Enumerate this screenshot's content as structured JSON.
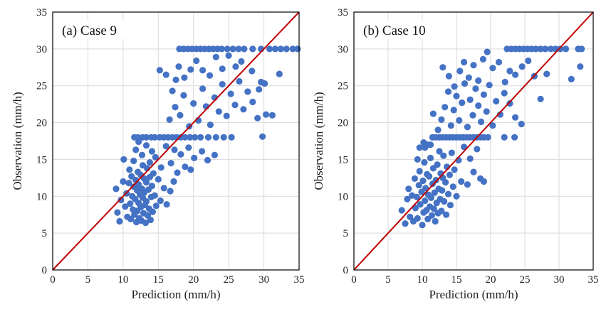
{
  "colors": {
    "points": "#4472C4",
    "identity_line": "#C00000",
    "grid": "#D9D9D9"
  },
  "chart_data": [
    {
      "type": "scatter",
      "panel_label": "(a) Case 9",
      "xlabel": "Prediction (mm/h)",
      "ylabel": "Observation (mm/h)",
      "xlim": [
        0,
        35
      ],
      "ylim": [
        0,
        35
      ],
      "xticks": [
        "0",
        "5",
        "10",
        "15",
        "20",
        "25",
        "30",
        "35"
      ],
      "yticks": [
        "0",
        "5",
        "10",
        "15",
        "20",
        "25",
        "30",
        "35"
      ],
      "grid": true,
      "identity_line": true,
      "points": [
        [
          9.0,
          11.0
        ],
        [
          9.2,
          7.8
        ],
        [
          9.5,
          6.6
        ],
        [
          9.7,
          9.5
        ],
        [
          10.0,
          12.0
        ],
        [
          10.1,
          15.0
        ],
        [
          10.3,
          8.6
        ],
        [
          10.5,
          10.4
        ],
        [
          10.6,
          7.2
        ],
        [
          10.8,
          11.8
        ],
        [
          10.9,
          13.6
        ],
        [
          11.0,
          9.0
        ],
        [
          11.1,
          6.9
        ],
        [
          11.2,
          12.7
        ],
        [
          11.3,
          10.0
        ],
        [
          11.4,
          8.2
        ],
        [
          11.5,
          14.8
        ],
        [
          11.5,
          11.3
        ],
        [
          11.6,
          7.5
        ],
        [
          11.7,
          9.6
        ],
        [
          11.8,
          12.2
        ],
        [
          11.9,
          6.5
        ],
        [
          12.0,
          10.8
        ],
        [
          12.0,
          8.0
        ],
        [
          12.1,
          13.3
        ],
        [
          12.2,
          11.6
        ],
        [
          12.2,
          9.1
        ],
        [
          12.3,
          7.0
        ],
        [
          12.4,
          10.2
        ],
        [
          12.5,
          12.9
        ],
        [
          12.5,
          8.5
        ],
        [
          12.6,
          6.7
        ],
        [
          12.7,
          11.0
        ],
        [
          12.8,
          9.8
        ],
        [
          12.8,
          14.2
        ],
        [
          12.9,
          7.7
        ],
        [
          13.0,
          12.4
        ],
        [
          13.0,
          10.5
        ],
        [
          13.1,
          8.8
        ],
        [
          13.2,
          6.4
        ],
        [
          13.3,
          11.9
        ],
        [
          13.3,
          9.3
        ],
        [
          13.4,
          13.8
        ],
        [
          13.5,
          7.4
        ],
        [
          13.6,
          10.9
        ],
        [
          13.7,
          8.3
        ],
        [
          13.8,
          12.6
        ],
        [
          13.9,
          6.8
        ],
        [
          14.0,
          9.9
        ],
        [
          14.1,
          11.4
        ],
        [
          14.2,
          7.9
        ],
        [
          14.3,
          13.1
        ],
        [
          14.5,
          10.1
        ],
        [
          14.7,
          8.7
        ],
        [
          15.0,
          12.3
        ],
        [
          15.3,
          9.4
        ],
        [
          15.8,
          11.1
        ],
        [
          16.2,
          8.9
        ],
        [
          16.7,
          10.7
        ],
        [
          17.2,
          12.0
        ],
        [
          11.8,
          16.3
        ],
        [
          12.2,
          17.4
        ],
        [
          12.7,
          15.6
        ],
        [
          13.3,
          16.9
        ],
        [
          13.8,
          14.6
        ],
        [
          14.1,
          16.1
        ],
        [
          14.6,
          15.3
        ],
        [
          15.4,
          13.9
        ],
        [
          16.1,
          16.8
        ],
        [
          16.8,
          14.5
        ],
        [
          17.3,
          16.3
        ],
        [
          17.7,
          13.2
        ],
        [
          18.2,
          15.7
        ],
        [
          18.8,
          14.0
        ],
        [
          19.3,
          16.6
        ],
        [
          19.6,
          13.6
        ],
        [
          20.1,
          15.2
        ],
        [
          21.2,
          16.1
        ],
        [
          22.0,
          14.9
        ],
        [
          23.0,
          15.6
        ],
        [
          11.6,
          18.0
        ],
        [
          12.1,
          18.0
        ],
        [
          12.8,
          18.0
        ],
        [
          13.3,
          18.0
        ],
        [
          14.0,
          18.0
        ],
        [
          14.5,
          18.0
        ],
        [
          15.2,
          18.0
        ],
        [
          15.8,
          18.0
        ],
        [
          16.4,
          18.0
        ],
        [
          17.0,
          18.0
        ],
        [
          17.6,
          18.0
        ],
        [
          18.2,
          18.0
        ],
        [
          18.8,
          18.0
        ],
        [
          19.5,
          18.0
        ],
        [
          20.2,
          18.0
        ],
        [
          21.0,
          18.0
        ],
        [
          22.1,
          18.0
        ],
        [
          23.2,
          18.0
        ],
        [
          24.3,
          18.0
        ],
        [
          25.4,
          18.0
        ],
        [
          16.6,
          20.4
        ],
        [
          17.4,
          22.1
        ],
        [
          18.1,
          21.0
        ],
        [
          18.6,
          23.7
        ],
        [
          19.4,
          19.5
        ],
        [
          20.0,
          22.6
        ],
        [
          20.7,
          20.3
        ],
        [
          21.3,
          24.6
        ],
        [
          21.8,
          22.2
        ],
        [
          22.4,
          19.7
        ],
        [
          23.0,
          23.4
        ],
        [
          23.6,
          21.5
        ],
        [
          24.1,
          25.2
        ],
        [
          24.7,
          20.9
        ],
        [
          25.3,
          23.9
        ],
        [
          25.9,
          22.4
        ],
        [
          26.5,
          25.6
        ],
        [
          27.1,
          21.8
        ],
        [
          27.7,
          24.2
        ],
        [
          28.4,
          22.8
        ],
        [
          29.1,
          20.6
        ],
        [
          29.6,
          25.5
        ],
        [
          30.3,
          21.1
        ],
        [
          31.2,
          21.0
        ],
        [
          32.2,
          26.6
        ],
        [
          29.8,
          18.1
        ],
        [
          15.2,
          27.1
        ],
        [
          16.1,
          26.5
        ],
        [
          17.0,
          24.3
        ],
        [
          17.5,
          25.8
        ],
        [
          17.9,
          27.6
        ],
        [
          18.7,
          26.1
        ],
        [
          19.6,
          27.2
        ],
        [
          20.4,
          28.4
        ],
        [
          21.3,
          27.1
        ],
        [
          22.3,
          26.4
        ],
        [
          23.2,
          28.9
        ],
        [
          24.1,
          27.3
        ],
        [
          25.0,
          29.1
        ],
        [
          26.0,
          27.6
        ],
        [
          26.8,
          28.3
        ],
        [
          28.3,
          27.0
        ],
        [
          29.3,
          24.5
        ],
        [
          30.1,
          25.3
        ],
        [
          18.0,
          30.0
        ],
        [
          18.6,
          30.0
        ],
        [
          19.2,
          30.0
        ],
        [
          19.8,
          30.0
        ],
        [
          20.4,
          30.0
        ],
        [
          21.0,
          30.0
        ],
        [
          21.6,
          30.0
        ],
        [
          22.2,
          30.0
        ],
        [
          22.8,
          30.0
        ],
        [
          23.4,
          30.0
        ],
        [
          24.0,
          30.0
        ],
        [
          24.8,
          30.0
        ],
        [
          25.6,
          30.0
        ],
        [
          26.4,
          30.0
        ],
        [
          27.2,
          30.0
        ],
        [
          28.4,
          30.0
        ],
        [
          29.6,
          30.0
        ],
        [
          30.8,
          30.0
        ],
        [
          31.6,
          30.0
        ],
        [
          32.4,
          30.0
        ],
        [
          33.2,
          30.0
        ],
        [
          34.1,
          30.0
        ],
        [
          34.8,
          30.0
        ]
      ]
    },
    {
      "type": "scatter",
      "panel_label": "(b) Case 10",
      "xlabel": "Prediction (mm/h)",
      "ylabel": "Observation (mm/h)",
      "xlim": [
        0,
        35
      ],
      "ylim": [
        0,
        35
      ],
      "xticks": [
        "0",
        "5",
        "10",
        "15",
        "20",
        "25",
        "30",
        "35"
      ],
      "yticks": [
        "0",
        "5",
        "10",
        "15",
        "20",
        "25",
        "30",
        "35"
      ],
      "grid": true,
      "identity_line": true,
      "points": [
        [
          7.0,
          8.1
        ],
        [
          7.5,
          6.3
        ],
        [
          7.8,
          9.6
        ],
        [
          8.0,
          11.0
        ],
        [
          8.2,
          7.2
        ],
        [
          8.5,
          10.1
        ],
        [
          8.7,
          6.6
        ],
        [
          8.9,
          12.4
        ],
        [
          9.0,
          8.4
        ],
        [
          9.2,
          9.9
        ],
        [
          9.3,
          7.0
        ],
        [
          9.5,
          11.5
        ],
        [
          9.6,
          13.4
        ],
        [
          9.7,
          8.9
        ],
        [
          9.9,
          10.6
        ],
        [
          10.0,
          6.1
        ],
        [
          10.1,
          12.1
        ],
        [
          10.2,
          7.8
        ],
        [
          10.3,
          14.6
        ],
        [
          10.4,
          9.4
        ],
        [
          10.5,
          11.1
        ],
        [
          10.6,
          8.1
        ],
        [
          10.7,
          13.0
        ],
        [
          10.8,
          6.9
        ],
        [
          10.9,
          10.2
        ],
        [
          11.0,
          12.7
        ],
        [
          11.1,
          8.6
        ],
        [
          11.2,
          15.2
        ],
        [
          11.3,
          9.8
        ],
        [
          11.4,
          7.4
        ],
        [
          11.5,
          11.7
        ],
        [
          11.6,
          13.8
        ],
        [
          11.7,
          8.3
        ],
        [
          11.8,
          10.5
        ],
        [
          11.9,
          6.6
        ],
        [
          12.0,
          12.2
        ],
        [
          12.1,
          9.1
        ],
        [
          12.2,
          14.3
        ],
        [
          12.3,
          7.7
        ],
        [
          12.4,
          11.0
        ],
        [
          12.5,
          16.1
        ],
        [
          12.6,
          9.6
        ],
        [
          12.7,
          13.1
        ],
        [
          12.8,
          8.0
        ],
        [
          12.9,
          10.8
        ],
        [
          13.0,
          12.5
        ],
        [
          13.1,
          15.5
        ],
        [
          13.2,
          9.3
        ],
        [
          13.4,
          11.9
        ],
        [
          13.5,
          7.5
        ],
        [
          13.6,
          14.0
        ],
        [
          13.8,
          10.3
        ],
        [
          14.0,
          12.9
        ],
        [
          14.1,
          8.8
        ],
        [
          14.3,
          15.9
        ],
        [
          14.5,
          11.3
        ],
        [
          14.7,
          13.6
        ],
        [
          15.0,
          10.0
        ],
        [
          15.3,
          14.9
        ],
        [
          15.7,
          12.0
        ],
        [
          16.1,
          16.7
        ],
        [
          16.6,
          11.6
        ],
        [
          17.0,
          15.1
        ],
        [
          17.5,
          13.3
        ],
        [
          18.0,
          16.4
        ],
        [
          18.5,
          12.4
        ],
        [
          19.0,
          12.0
        ],
        [
          10.4,
          16.6
        ],
        [
          10.2,
          17.3
        ],
        [
          9.3,
          15.0
        ],
        [
          9.6,
          16.6
        ],
        [
          10.8,
          17.0
        ],
        [
          11.2,
          17.0
        ],
        [
          11.5,
          18.0
        ],
        [
          12.0,
          18.0
        ],
        [
          12.5,
          18.0
        ],
        [
          13.0,
          18.0
        ],
        [
          13.5,
          18.0
        ],
        [
          14.0,
          18.0
        ],
        [
          14.5,
          18.0
        ],
        [
          15.0,
          18.0
        ],
        [
          15.5,
          18.0
        ],
        [
          16.0,
          18.0
        ],
        [
          16.5,
          18.0
        ],
        [
          17.0,
          18.0
        ],
        [
          17.5,
          18.0
        ],
        [
          18.0,
          18.0
        ],
        [
          18.5,
          18.0
        ],
        [
          19.0,
          18.0
        ],
        [
          19.6,
          18.0
        ],
        [
          22.0,
          18.0
        ],
        [
          23.5,
          18.0
        ],
        [
          11.6,
          21.2
        ],
        [
          12.3,
          19.0
        ],
        [
          12.8,
          20.4
        ],
        [
          13.3,
          22.1
        ],
        [
          13.8,
          24.2
        ],
        [
          14.2,
          19.6
        ],
        [
          14.6,
          21.7
        ],
        [
          15.0,
          23.6
        ],
        [
          15.4,
          20.3
        ],
        [
          15.8,
          22.7
        ],
        [
          16.2,
          25.3
        ],
        [
          16.6,
          19.4
        ],
        [
          17.0,
          23.1
        ],
        [
          17.4,
          21.0
        ],
        [
          17.8,
          24.6
        ],
        [
          18.2,
          22.3
        ],
        [
          18.6,
          20.1
        ],
        [
          19.0,
          23.8
        ],
        [
          19.4,
          21.5
        ],
        [
          19.8,
          25.1
        ],
        [
          20.3,
          19.6
        ],
        [
          20.8,
          22.9
        ],
        [
          21.4,
          21.1
        ],
        [
          22.0,
          24.0
        ],
        [
          22.8,
          22.6
        ],
        [
          23.6,
          20.7
        ],
        [
          24.5,
          19.8
        ],
        [
          13.0,
          27.5
        ],
        [
          13.9,
          26.3
        ],
        [
          14.7,
          24.9
        ],
        [
          15.5,
          27.0
        ],
        [
          16.1,
          28.2
        ],
        [
          16.8,
          26.1
        ],
        [
          17.5,
          27.8
        ],
        [
          18.2,
          25.7
        ],
        [
          18.9,
          28.6
        ],
        [
          19.5,
          29.6
        ],
        [
          20.3,
          27.4
        ],
        [
          21.2,
          28.2
        ],
        [
          22.1,
          25.5
        ],
        [
          22.8,
          27.0
        ],
        [
          23.6,
          26.5
        ],
        [
          24.6,
          27.6
        ],
        [
          25.5,
          28.4
        ],
        [
          26.4,
          26.3
        ],
        [
          27.3,
          23.2
        ],
        [
          28.2,
          26.6
        ],
        [
          22.4,
          30.0
        ],
        [
          23.0,
          30.0
        ],
        [
          23.6,
          30.0
        ],
        [
          24.2,
          30.0
        ],
        [
          24.8,
          30.0
        ],
        [
          25.4,
          30.0
        ],
        [
          26.0,
          30.0
        ],
        [
          26.6,
          30.0
        ],
        [
          27.3,
          30.0
        ],
        [
          28.0,
          30.0
        ],
        [
          28.8,
          30.0
        ],
        [
          29.5,
          30.0
        ],
        [
          30.2,
          30.0
        ],
        [
          31.0,
          30.0
        ],
        [
          32.8,
          30.0
        ],
        [
          33.3,
          30.0
        ],
        [
          31.8,
          25.9
        ],
        [
          33.1,
          27.6
        ]
      ]
    }
  ]
}
